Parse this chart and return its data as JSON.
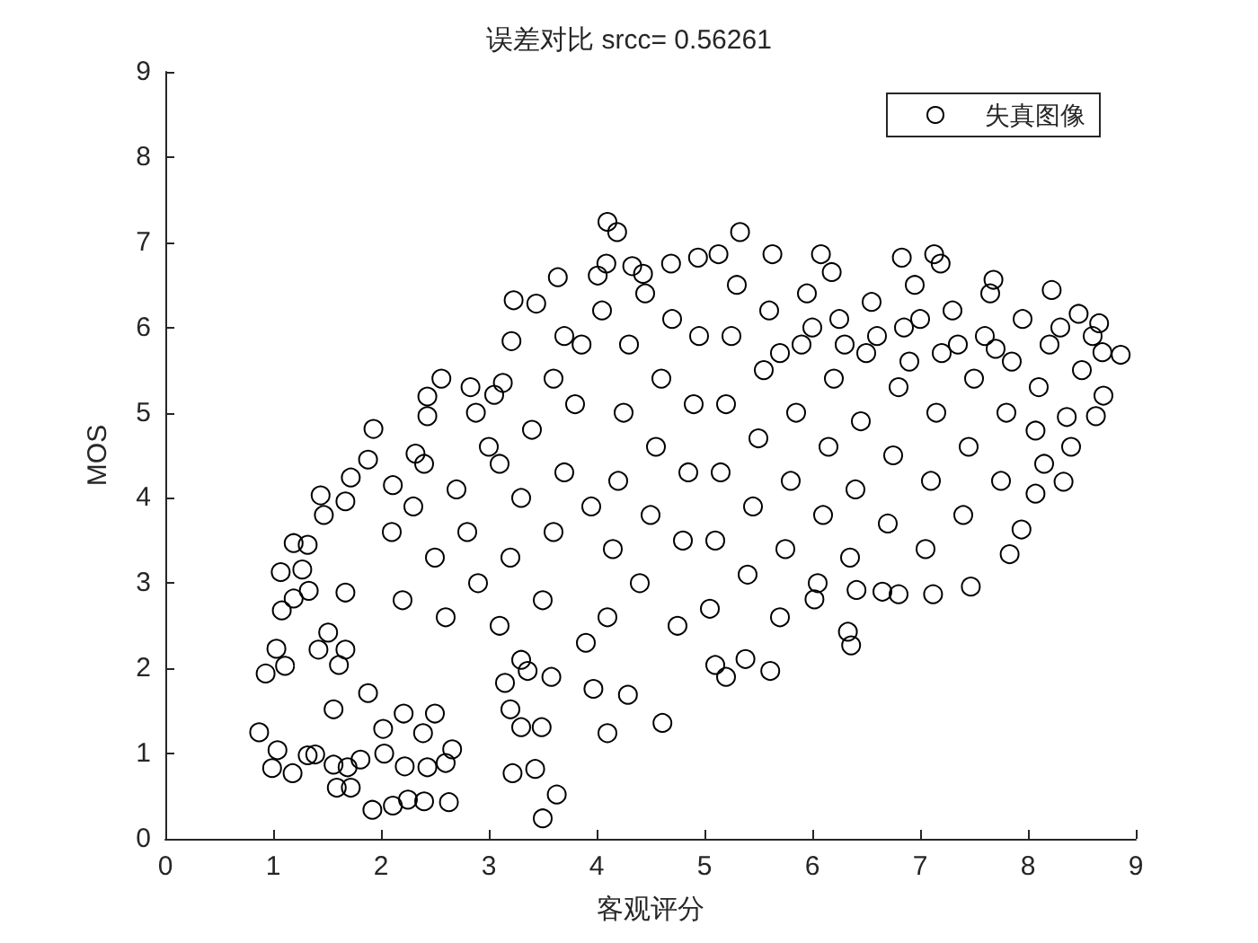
{
  "chart_data": {
    "type": "scatter",
    "title": "误差对比 srcc= 0.56261",
    "xlabel": "客观评分",
    "ylabel": "MOS",
    "xlim": [
      0,
      9
    ],
    "ylim": [
      0,
      9
    ],
    "xticks": [
      0,
      1,
      2,
      3,
      4,
      5,
      6,
      7,
      8,
      9
    ],
    "yticks": [
      0,
      1,
      2,
      3,
      4,
      5,
      6,
      7,
      8,
      9
    ],
    "marker": "circle",
    "legend": "top right",
    "grid": false,
    "series": [
      {
        "name": "失真图像",
        "color": "#000000",
        "x": [
          0.87,
          1.04,
          0.99,
          1.18,
          1.32,
          1.39,
          1.56,
          1.69,
          1.81,
          1.59,
          1.72,
          1.92,
          2.11,
          2.25,
          2.4,
          2.63,
          2.03,
          2.22,
          2.43,
          2.6,
          2.66,
          2.5,
          2.39,
          2.02,
          2.21,
          1.88,
          1.56,
          0.93,
          1.11,
          1.03,
          1.42,
          1.51,
          1.61,
          1.67,
          1.08,
          1.19,
          1.33,
          1.07,
          1.27,
          1.19,
          1.32,
          1.47,
          1.44,
          1.67,
          1.93,
          1.88,
          1.72,
          2.11,
          2.32,
          2.43,
          2.56,
          2.83,
          2.88,
          3.21,
          2.43,
          1.67,
          4.1,
          4.19,
          5.33,
          3.23,
          3.44,
          3.64,
          3.7,
          3.86,
          4.01,
          4.09,
          4.33,
          4.43,
          4.69,
          4.94,
          5.13,
          5.63,
          6.08,
          6.18,
          3.13,
          3.05,
          3.2,
          3.3,
          3.49,
          4.61,
          4.1,
          3.97,
          4.29,
          5.1,
          5.2,
          5.61,
          5.38,
          3.15,
          3.36,
          3.58,
          3.5,
          3.63,
          3.43,
          6.83,
          7.13,
          7.19,
          7.68,
          8.22,
          8.86,
          8.69,
          8.66,
          8.47,
          8.63,
          8.36,
          8.33,
          8.07,
          8.07,
          7.94,
          7.83,
          7.47,
          7.12,
          6.8,
          6.41,
          6.33,
          6.36,
          6.02,
          3.22,
          2.1,
          2.3,
          2.5,
          2.7,
          2.9,
          2.2,
          2.6,
          2.8,
          2.4,
          3.0,
          3.1,
          3.2,
          3.3,
          3.4,
          3.5,
          3.6,
          3.7,
          3.8,
          3.9,
          3.95,
          3.3,
          3.6,
          3.1,
          4.1,
          4.15,
          4.2,
          4.25,
          4.3,
          4.4,
          4.5,
          4.55,
          4.6,
          4.7,
          4.75,
          4.8,
          4.85,
          4.9,
          4.95,
          4.05,
          4.45,
          5.05,
          5.1,
          5.15,
          5.2,
          5.25,
          5.3,
          5.4,
          5.45,
          5.5,
          5.55,
          5.6,
          5.7,
          5.75,
          5.8,
          5.85,
          5.9,
          5.95,
          6.05,
          6.1,
          6.15,
          6.2,
          6.25,
          6.35,
          6.4,
          6.45,
          6.5,
          6.55,
          6.65,
          6.7,
          6.75,
          6.8,
          6.85,
          6.95,
          7.05,
          7.1,
          7.15,
          7.2,
          7.3,
          7.4,
          7.45,
          7.5,
          7.6,
          7.65,
          7.75,
          7.8,
          7.85,
          7.95,
          8.1,
          8.2,
          8.3,
          8.4,
          8.5,
          8.6,
          8.7,
          8.15,
          5.7,
          6.0,
          6.3,
          6.6,
          6.9,
          7.0,
          7.35,
          7.7
        ],
        "values": [
          1.25,
          1.04,
          0.83,
          0.77,
          0.98,
          0.99,
          0.87,
          0.84,
          0.93,
          0.6,
          0.6,
          0.34,
          0.39,
          0.46,
          0.44,
          0.43,
          1.0,
          0.85,
          0.84,
          0.89,
          1.05,
          1.47,
          1.24,
          1.29,
          1.47,
          1.71,
          1.52,
          1.94,
          2.03,
          2.23,
          2.22,
          2.42,
          2.04,
          2.22,
          2.68,
          2.82,
          2.91,
          3.13,
          3.16,
          3.47,
          3.45,
          3.8,
          4.03,
          3.96,
          4.81,
          4.45,
          4.24,
          4.15,
          4.52,
          5.19,
          5.4,
          5.3,
          5.0,
          5.84,
          4.96,
          2.89,
          7.24,
          7.12,
          7.12,
          6.32,
          6.28,
          6.59,
          5.9,
          5.8,
          6.61,
          6.75,
          6.72,
          6.63,
          6.75,
          6.82,
          6.86,
          6.86,
          6.86,
          6.65,
          5.35,
          5.21,
          1.52,
          1.31,
          1.31,
          1.36,
          1.24,
          1.76,
          1.69,
          2.04,
          1.9,
          1.97,
          2.11,
          1.83,
          1.97,
          1.9,
          0.24,
          0.52,
          0.82,
          6.82,
          6.86,
          6.75,
          6.56,
          6.44,
          5.68,
          5.71,
          6.05,
          6.16,
          4.96,
          4.95,
          4.19,
          4.79,
          4.05,
          3.63,
          3.34,
          2.96,
          2.87,
          2.87,
          2.92,
          2.43,
          2.27,
          2.81,
          0.77,
          3.6,
          3.9,
          3.3,
          4.1,
          3.0,
          2.8,
          2.6,
          3.6,
          4.4,
          4.6,
          2.5,
          3.3,
          4.0,
          4.8,
          2.8,
          3.6,
          4.3,
          5.1,
          2.3,
          3.9,
          2.1,
          5.4,
          4.4,
          2.6,
          3.4,
          4.2,
          5.0,
          5.8,
          3.0,
          3.8,
          4.6,
          5.4,
          6.1,
          2.5,
          3.5,
          4.3,
          5.1,
          5.9,
          6.2,
          6.4,
          2.7,
          3.5,
          4.3,
          5.1,
          5.9,
          6.5,
          3.1,
          3.9,
          4.7,
          5.5,
          6.2,
          2.6,
          3.4,
          4.2,
          5.0,
          5.8,
          6.4,
          3.0,
          3.8,
          4.6,
          5.4,
          6.1,
          3.3,
          4.1,
          4.9,
          5.7,
          6.3,
          2.9,
          3.7,
          4.5,
          5.3,
          6.0,
          6.5,
          3.4,
          4.2,
          5.0,
          5.7,
          6.2,
          3.8,
          4.6,
          5.4,
          5.9,
          6.4,
          4.2,
          5.0,
          5.6,
          6.1,
          5.3,
          5.8,
          6.0,
          4.6,
          5.5,
          5.9,
          5.2,
          4.4,
          5.7,
          6.0,
          5.8,
          5.9,
          5.6,
          6.1,
          5.8,
          5.75
        ]
      }
    ]
  }
}
